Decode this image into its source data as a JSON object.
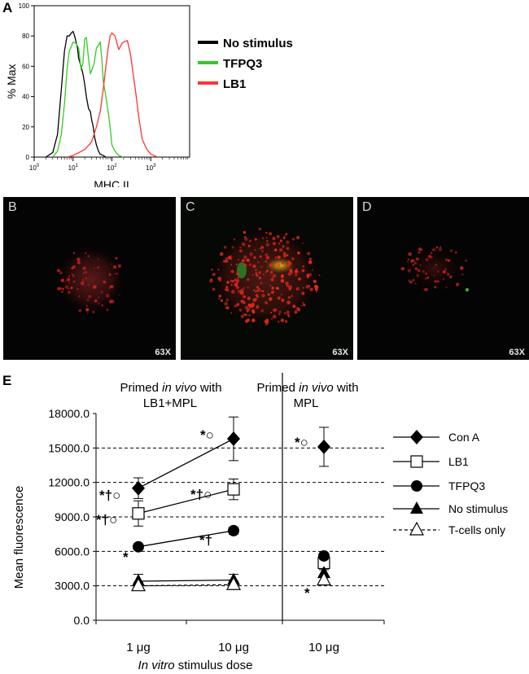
{
  "panels": {
    "A": {
      "letter": "A",
      "ylabel": "% Max",
      "xlabel": "MHC II",
      "yticks": [
        "0",
        "20",
        "40",
        "60",
        "80",
        "100"
      ],
      "xticks": [
        {
          "base": "10",
          "exp": "0"
        },
        {
          "base": "10",
          "exp": "1"
        },
        {
          "base": "10",
          "exp": "2"
        },
        {
          "base": "10",
          "exp": "3"
        }
      ],
      "legend": [
        {
          "label": "No stimulus",
          "color": "#000000"
        },
        {
          "label": "TFPQ3",
          "color": "#33cc22"
        },
        {
          "label": "LB1",
          "color": "#ff3333"
        }
      ]
    },
    "B": {
      "letter": "B",
      "mag": "63X"
    },
    "C": {
      "letter": "C",
      "mag": "63X"
    },
    "D": {
      "letter": "D",
      "mag": "63X"
    },
    "E": {
      "letter": "E",
      "header_left": [
        "Primed ",
        "in vivo",
        " with",
        "LB1+MPL"
      ],
      "header_right": [
        "Primed ",
        "in vivo",
        " with",
        "MPL"
      ],
      "xtick_labels": [
        "1 μg",
        "10 μg",
        "10 μg"
      ],
      "xlabel": [
        "In vitro",
        " stimulus dose"
      ],
      "ylabel": "Mean fluorescence",
      "legend": [
        "Con A",
        "LB1",
        "TFPQ3",
        "No stimulus",
        "T-cells only"
      ],
      "annotations": [
        "*†○",
        "*†○",
        "*†○",
        "*○",
        "*○",
        "*†",
        "*",
        "*"
      ]
    }
  },
  "chart_data": [
    {
      "type": "line",
      "title": "",
      "xlabel": "MHC II",
      "ylabel": "% Max",
      "x_scale": "log",
      "xlim": [
        1,
        10000
      ],
      "ylim": [
        0,
        100
      ],
      "series": [
        {
          "name": "No stimulus",
          "color": "#000000",
          "x": [
            2,
            3,
            4,
            5,
            6,
            7,
            8,
            9,
            10,
            11,
            12,
            13,
            14,
            16,
            18,
            20,
            22,
            25,
            28,
            30,
            33,
            36,
            40,
            45,
            50,
            60,
            70
          ],
          "y": [
            0,
            3,
            15,
            45,
            70,
            80,
            80,
            82,
            83,
            80,
            76,
            72,
            65,
            60,
            55,
            48,
            40,
            32,
            30,
            25,
            20,
            13,
            8,
            4,
            2,
            1,
            0
          ]
        },
        {
          "name": "TFPQ3",
          "color": "#33cc22",
          "x": [
            3,
            4,
            5,
            6,
            7,
            8,
            9,
            10,
            12,
            14,
            16,
            18,
            20,
            22,
            25,
            28,
            30,
            35,
            40,
            45,
            50,
            55,
            60,
            70,
            80,
            90,
            100,
            120,
            150,
            200
          ],
          "y": [
            0,
            4,
            15,
            35,
            58,
            70,
            73,
            76,
            75,
            72,
            58,
            62,
            78,
            79,
            65,
            55,
            57,
            62,
            72,
            74,
            76,
            65,
            50,
            40,
            30,
            20,
            8,
            4,
            1,
            0
          ]
        },
        {
          "name": "LB1",
          "color": "#ff3333",
          "x": [
            7,
            10,
            20,
            30,
            40,
            50,
            60,
            70,
            80,
            90,
            100,
            120,
            150,
            180,
            200,
            250,
            300,
            400,
            500,
            600,
            700,
            800,
            1000,
            1500
          ],
          "y": [
            0,
            1,
            5,
            10,
            20,
            30,
            45,
            60,
            72,
            80,
            82,
            80,
            71,
            75,
            76,
            77,
            68,
            45,
            25,
            12,
            8,
            5,
            2,
            0
          ]
        }
      ]
    },
    {
      "type": "line",
      "title": "",
      "xlabel": "In vitro stimulus dose",
      "ylabel": "Mean fluorescence",
      "categories": [
        "1 μg",
        "10 μg",
        "10 μg"
      ],
      "ylim": [
        0,
        18000
      ],
      "yticks": [
        "0.0",
        "3000.0",
        "6000.0",
        "9000.0",
        "12000.0",
        "15000.0",
        "18000.0"
      ],
      "gridlines": [
        3000,
        6000,
        9000,
        12000,
        15000
      ],
      "series": [
        {
          "name": "Con A",
          "marker": "diamond",
          "values": [
            11500,
            15800,
            15100
          ],
          "errors": [
            900,
            1900,
            1700
          ]
        },
        {
          "name": "LB1",
          "marker": "square-open",
          "values": [
            9300,
            11400,
            5000
          ],
          "errors": [
            1100,
            900,
            500
          ]
        },
        {
          "name": "TFPQ3",
          "marker": "circle",
          "values": [
            6400,
            7800,
            5600
          ],
          "errors": [
            250,
            300,
            250
          ]
        },
        {
          "name": "No stimulus",
          "marker": "triangle",
          "values": [
            3400,
            3500,
            4100
          ],
          "errors": [
            600,
            500,
            300
          ]
        },
        {
          "name": "T-cells only",
          "marker": "triangle-open",
          "line": "dashed",
          "values": [
            3000,
            3100,
            3500
          ],
          "errors": [
            300,
            300,
            300
          ]
        }
      ]
    }
  ]
}
